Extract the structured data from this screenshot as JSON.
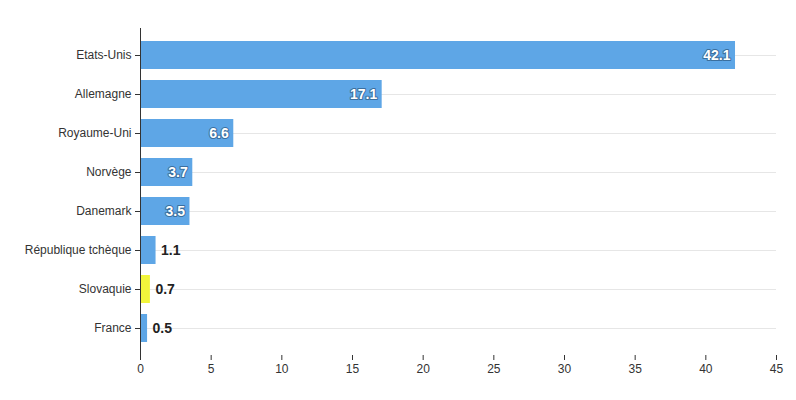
{
  "chart_data": {
    "type": "bar",
    "orientation": "horizontal",
    "categories": [
      "Etats-Unis",
      "Allemagne",
      "Royaume-Uni",
      "Norvège",
      "Danemark",
      "République tchèque",
      "Slovaquie",
      "France"
    ],
    "values": [
      42.1,
      17.1,
      6.6,
      3.7,
      3.5,
      1.1,
      0.7,
      0.5
    ],
    "colors": [
      "#5ea6e6",
      "#5ea6e6",
      "#5ea6e6",
      "#5ea6e6",
      "#5ea6e6",
      "#5ea6e6",
      "#f2f53b",
      "#5ea6e6"
    ],
    "xlim": [
      0,
      45
    ],
    "xticks": [
      0,
      5,
      10,
      15,
      20,
      25,
      30,
      35,
      40,
      45
    ],
    "data_labels": true
  }
}
